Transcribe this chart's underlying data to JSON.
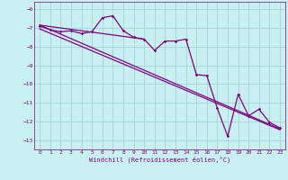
{
  "xlabel": "Windchill (Refroidissement éolien,°C)",
  "bg_color": "#c8f0f0",
  "grid_color": "#a8d8d8",
  "line_color": "#800080",
  "xlim": [
    -0.5,
    23.5
  ],
  "ylim": [
    -13.5,
    -5.6
  ],
  "yticks": [
    -6,
    -7,
    -8,
    -9,
    -10,
    -11,
    -12,
    -13
  ],
  "xticks": [
    0,
    1,
    2,
    3,
    4,
    5,
    6,
    7,
    8,
    9,
    10,
    11,
    12,
    13,
    14,
    15,
    16,
    17,
    18,
    19,
    20,
    21,
    22,
    23
  ],
  "data_line": {
    "x": [
      0,
      1,
      2,
      3,
      4,
      5,
      6,
      7,
      8,
      9,
      10,
      11,
      12,
      13,
      14,
      15,
      16,
      17,
      18,
      19,
      20,
      21,
      22,
      23
    ],
    "y": [
      -6.9,
      -7.1,
      -7.2,
      -7.15,
      -7.3,
      -7.2,
      -6.45,
      -6.35,
      -7.15,
      -7.5,
      -7.6,
      -8.2,
      -7.7,
      -7.7,
      -7.6,
      -9.5,
      -9.55,
      -11.3,
      -12.8,
      -10.55,
      -11.7,
      -11.35,
      -12.05,
      -12.35
    ]
  },
  "reg_line1": {
    "x": [
      0,
      10
    ],
    "y": [
      -6.85,
      -7.6
    ]
  },
  "reg_line2": {
    "x": [
      0,
      23
    ],
    "y": [
      -7.05,
      -12.45
    ]
  },
  "reg_line3": {
    "x": [
      0,
      23
    ],
    "y": [
      -6.85,
      -12.4
    ]
  }
}
